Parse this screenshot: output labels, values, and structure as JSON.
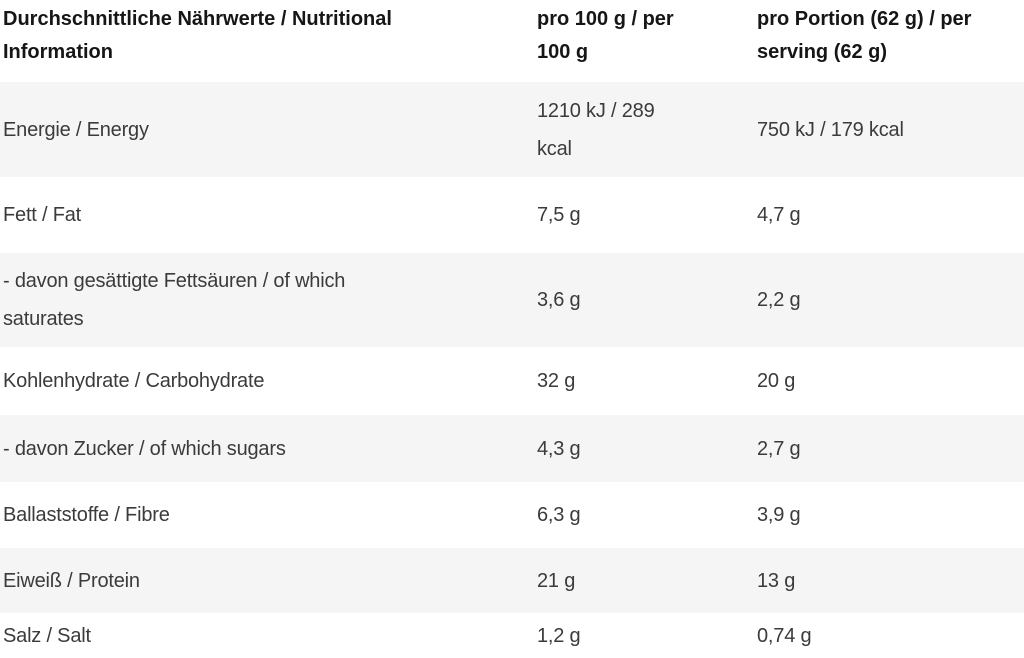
{
  "table": {
    "header": {
      "nutrient": "Durchschnittliche Nährwerte / Nutritional\nInformation",
      "per_100g": "pro 100 g / per\n100 g",
      "per_serving": "pro Portion (62 g) / per\nserving (62 g)"
    },
    "rows": [
      {
        "label": "Energie / Energy",
        "per_100g": "1210 kJ / 289\nkcal",
        "per_serving": "750 kJ / 179 kcal"
      },
      {
        "label": "Fett / Fat",
        "per_100g": "7,5 g",
        "per_serving": "4,7 g"
      },
      {
        "label": "- davon gesättigte Fettsäuren / of which\nsaturates",
        "per_100g": "3,6 g",
        "per_serving": "2,2 g"
      },
      {
        "label": "Kohlenhydrate / Carbohydrate",
        "per_100g": "32 g",
        "per_serving": "20 g"
      },
      {
        "label": "- davon Zucker / of which sugars",
        "per_100g": "4,3 g",
        "per_serving": "2,7 g"
      },
      {
        "label": "Ballaststoffe / Fibre",
        "per_100g": "6,3 g",
        "per_serving": "3,9 g"
      },
      {
        "label": "Eiweiß / Protein",
        "per_100g": "21 g",
        "per_serving": "13 g"
      },
      {
        "label": "Salz / Salt",
        "per_100g": "1,2 g",
        "per_serving": "0,74 g"
      }
    ]
  },
  "colors": {
    "stripe": "#f5f5f5",
    "row_white": "#ffffff",
    "header_text": "#161616",
    "body_text": "#3b3b3b"
  }
}
